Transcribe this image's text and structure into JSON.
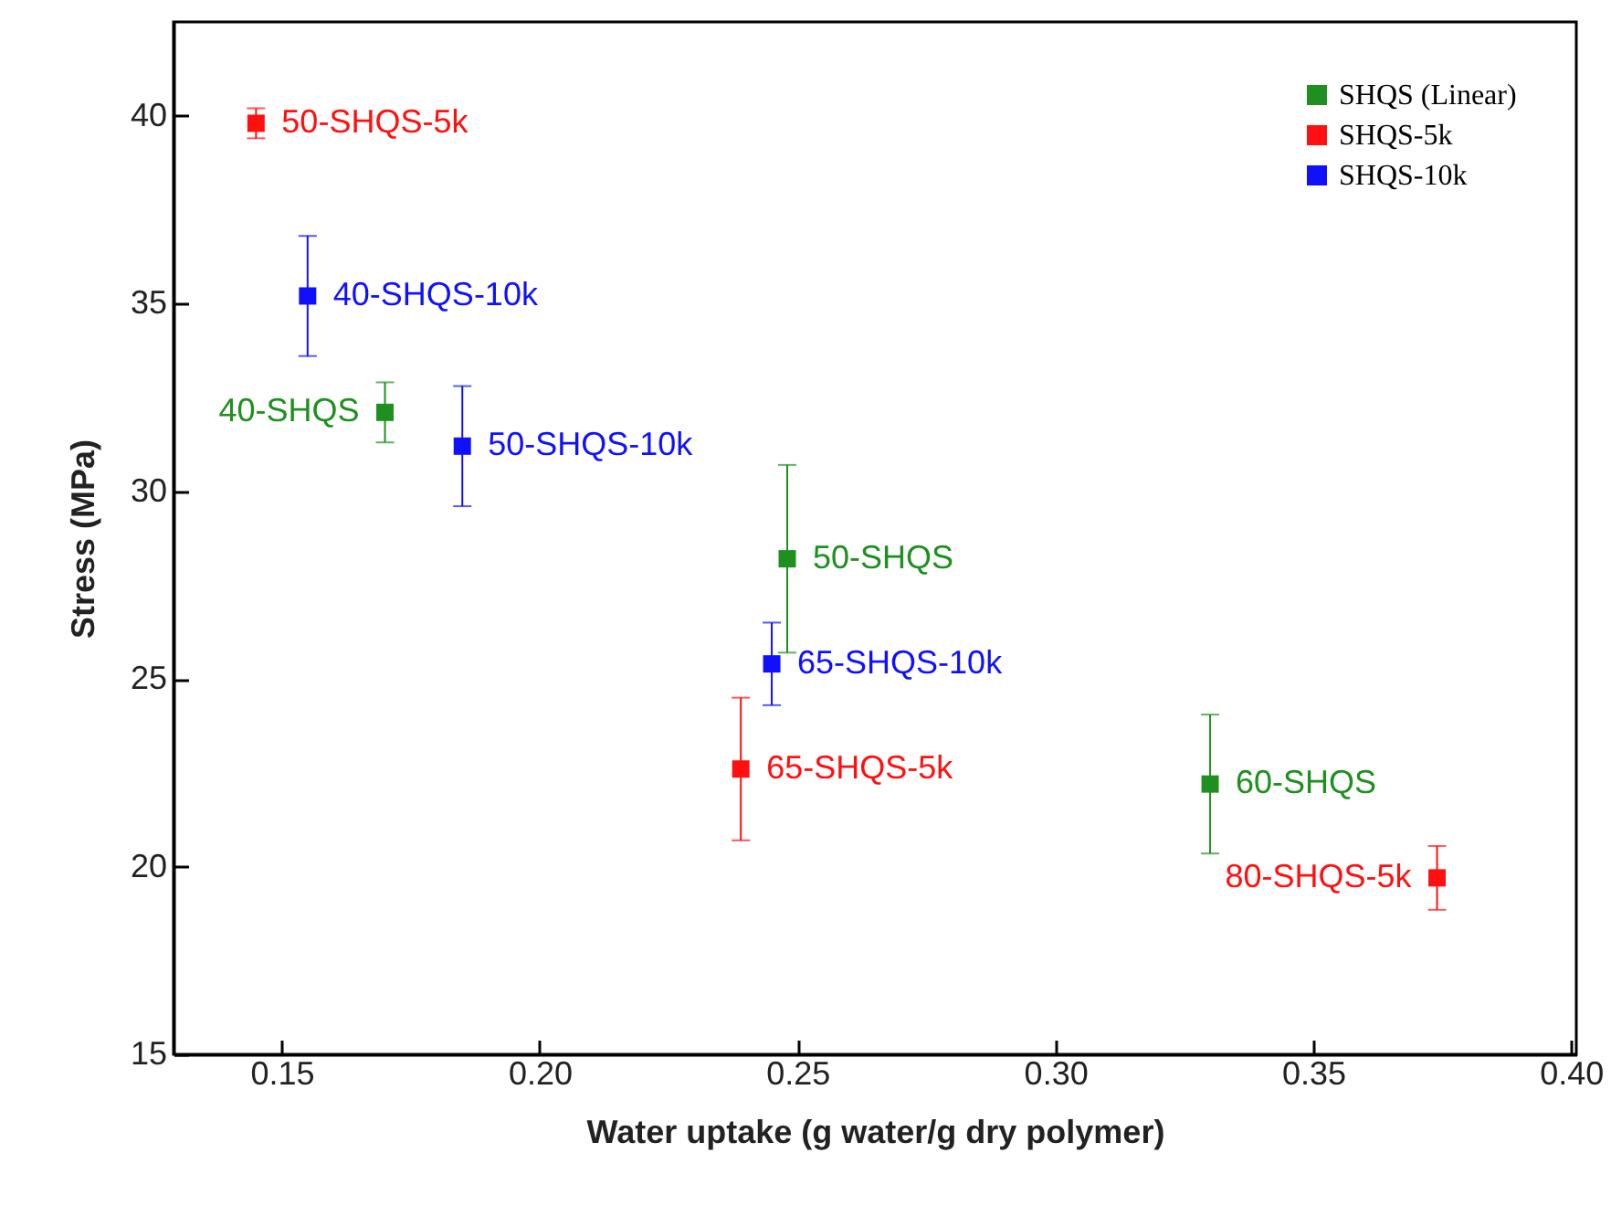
{
  "chart_data": {
    "type": "scatter",
    "xlabel": "Water uptake (g water/g dry polymer)",
    "ylabel": "Stress (MPa)",
    "xlim": [
      0.129,
      0.401
    ],
    "xticks": [
      0.15,
      {
        "value": 0.2,
        "label": "0.20"
      },
      0.25,
      {
        "value": 0.3,
        "label": "0.30"
      },
      0.35,
      {
        "value": 0.4,
        "label": "0.40"
      }
    ],
    "ylim": [
      15,
      42.5
    ],
    "yticks": [
      15,
      20,
      25,
      30,
      35,
      40
    ],
    "grid": false,
    "legend": "top right",
    "marker": "square",
    "series": [
      {
        "name": "SHQS (Linear)",
        "color": "#1f8f1f",
        "x": [
          0.17,
          0.248,
          0.33
        ],
        "values": [
          32.1,
          28.2,
          22.2
        ],
        "errors": [
          0.8,
          2.5,
          1.85
        ]
      },
      {
        "name": "SHQS-5k",
        "color": "#ff1010",
        "x": [
          0.145,
          0.239,
          0.374
        ],
        "values": [
          39.8,
          22.6,
          19.7
        ],
        "errors": [
          0.4,
          1.9,
          0.85
        ]
      },
      {
        "name": "SHQS-10k",
        "color": "#1010ff",
        "x": [
          0.155,
          0.185,
          0.245
        ],
        "values": [
          35.2,
          31.2,
          25.4
        ],
        "errors": [
          1.6,
          1.6,
          1.1
        ]
      }
    ],
    "annotations": [
      {
        "text": "50-SHQS-5k",
        "x": 0.145,
        "y": 39.8
      },
      {
        "text": "40-SHQS-10k",
        "x": 0.155,
        "y": 35.2
      },
      {
        "text": "40-SHQS",
        "x": 0.17,
        "y": 32.1
      },
      {
        "text": "50-SHQS-10k",
        "x": 0.185,
        "y": 31.2
      },
      {
        "text": "50-SHQS",
        "x": 0.248,
        "y": 28.2
      },
      {
        "text": "65-SHQS-10k",
        "x": 0.245,
        "y": 25.4
      },
      {
        "text": "65-SHQS-5k",
        "x": 0.239,
        "y": 22.6
      },
      {
        "text": "60-SHQS",
        "x": 0.33,
        "y": 22.2
      },
      {
        "text": "80-SHQS-5k",
        "x": 0.374,
        "y": 19.7
      }
    ]
  }
}
